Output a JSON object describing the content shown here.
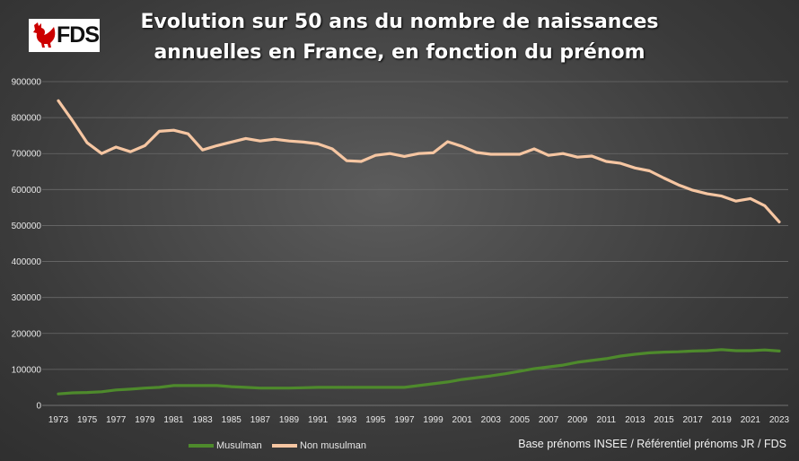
{
  "header": {
    "title_line1": "Evolution sur 50 ans du nombre de naissances",
    "title_line2": "annuelles en France, en fonction du prénom"
  },
  "logo": {
    "text": "FDS",
    "icon": "rooster-icon",
    "color": "#cc0000"
  },
  "source": "Base prénoms INSEE / Référentiel prénoms JR / FDS",
  "chart_data": {
    "type": "line",
    "title": "Evolution sur 50 ans du nombre de naissances annuelles en France, en fonction du prénom",
    "xlabel": "",
    "ylabel": "",
    "ylim": [
      0,
      900000
    ],
    "yticks": [
      0,
      100000,
      200000,
      300000,
      400000,
      500000,
      600000,
      700000,
      800000,
      900000
    ],
    "xtick_labels": [
      "1973",
      "1975",
      "1977",
      "1979",
      "1981",
      "1983",
      "1985",
      "1987",
      "1989",
      "1991",
      "1993",
      "1995",
      "1997",
      "1999",
      "2001",
      "2003",
      "2005",
      "2007",
      "2009",
      "2011",
      "2013",
      "2015",
      "2017",
      "2019",
      "2021",
      "2023"
    ],
    "grid": true,
    "legend_position": "bottom-left",
    "x": [
      1973,
      1974,
      1975,
      1976,
      1977,
      1978,
      1979,
      1980,
      1981,
      1982,
      1983,
      1984,
      1985,
      1986,
      1987,
      1988,
      1989,
      1990,
      1991,
      1992,
      1993,
      1994,
      1995,
      1996,
      1997,
      1998,
      1999,
      2000,
      2001,
      2002,
      2003,
      2004,
      2005,
      2006,
      2007,
      2008,
      2009,
      2010,
      2011,
      2012,
      2013,
      2014,
      2015,
      2016,
      2017,
      2018,
      2019,
      2020,
      2021,
      2022,
      2023
    ],
    "series": [
      {
        "name": "Musulman",
        "color": "#4e8a2c",
        "values": [
          32000,
          35000,
          36000,
          38000,
          43000,
          45000,
          48000,
          50000,
          55000,
          55000,
          55000,
          55000,
          52000,
          50000,
          48000,
          48000,
          48000,
          49000,
          50000,
          50000,
          50000,
          50000,
          50000,
          50000,
          50000,
          55000,
          60000,
          65000,
          72000,
          77000,
          82000,
          88000,
          95000,
          102000,
          107000,
          112000,
          120000,
          125000,
          130000,
          137000,
          142000,
          146000,
          148000,
          149000,
          151000,
          152000,
          155000,
          152000,
          152000,
          154000,
          151000
        ]
      },
      {
        "name": "Non musulman",
        "color": "#f6c6a2",
        "values": [
          847000,
          790000,
          730000,
          700000,
          718000,
          705000,
          722000,
          762000,
          765000,
          755000,
          710000,
          722000,
          732000,
          742000,
          735000,
          740000,
          735000,
          732000,
          727000,
          713000,
          680000,
          678000,
          695000,
          700000,
          692000,
          700000,
          702000,
          733000,
          720000,
          703000,
          698000,
          698000,
          698000,
          713000,
          695000,
          700000,
          690000,
          693000,
          678000,
          673000,
          660000,
          652000,
          632000,
          613000,
          598000,
          588000,
          582000,
          568000,
          575000,
          555000,
          510000
        ]
      }
    ]
  }
}
